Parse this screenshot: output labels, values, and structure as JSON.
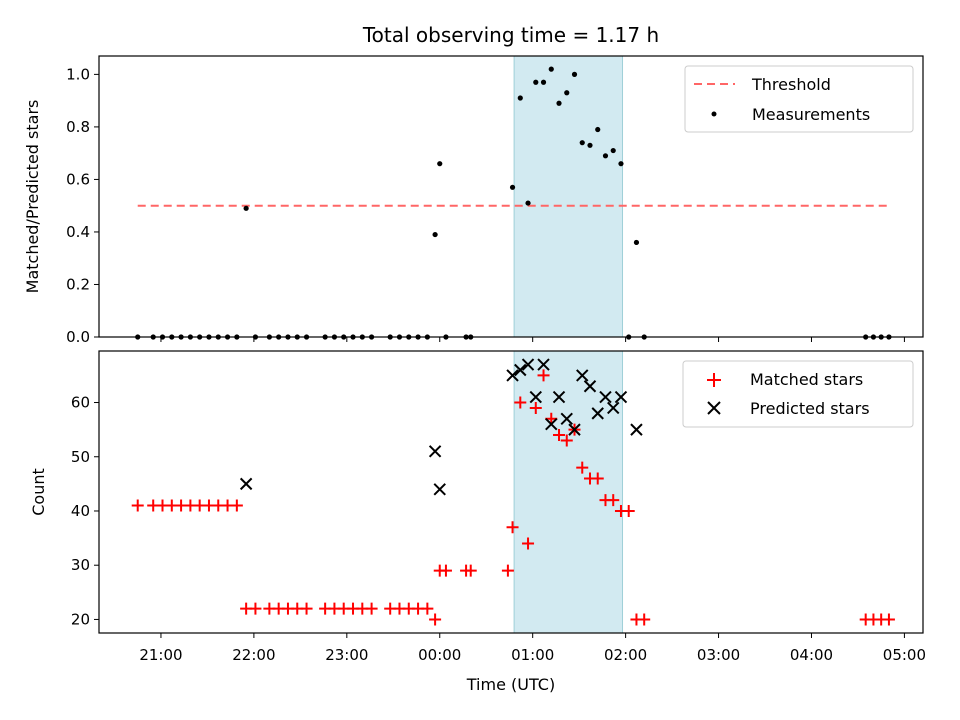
{
  "chart_data": [
    {
      "type": "scatter",
      "title": "Total observing time = 1.17 h",
      "xlabel": "",
      "ylabel": "Matched/Predicted stars",
      "ylim": [
        0,
        1.07
      ],
      "yticks": [
        "0.0",
        "0.2",
        "0.4",
        "0.6",
        "0.8",
        "1.0"
      ],
      "highlight_window": [
        "00:48",
        "01:58"
      ],
      "highlight_color": "#add8e6",
      "threshold": {
        "name": "Threshold",
        "value": 0.5,
        "x_range": [
          "20:45",
          "04:50"
        ],
        "color": "#ff6666"
      },
      "series": [
        {
          "name": "Measurements",
          "color": "#000000",
          "points": [
            [
              "20:45",
              0
            ],
            [
              "20:55",
              0
            ],
            [
              "21:01",
              0
            ],
            [
              "21:07",
              0
            ],
            [
              "21:13",
              0
            ],
            [
              "21:19",
              0
            ],
            [
              "21:25",
              0
            ],
            [
              "21:31",
              0
            ],
            [
              "21:37",
              0
            ],
            [
              "21:43",
              0
            ],
            [
              "21:49",
              0
            ],
            [
              "21:55",
              0.49
            ],
            [
              "22:01",
              0
            ],
            [
              "22:10",
              0
            ],
            [
              "22:16",
              0
            ],
            [
              "22:22",
              0
            ],
            [
              "22:28",
              0
            ],
            [
              "22:34",
              0
            ],
            [
              "22:46",
              0
            ],
            [
              "22:52",
              0
            ],
            [
              "22:58",
              0
            ],
            [
              "23:04",
              0
            ],
            [
              "23:10",
              0
            ],
            [
              "23:16",
              0
            ],
            [
              "23:28",
              0
            ],
            [
              "23:34",
              0
            ],
            [
              "23:40",
              0
            ],
            [
              "23:46",
              0
            ],
            [
              "23:52",
              0
            ],
            [
              "23:57",
              0.39
            ],
            [
              "00:00",
              0.66
            ],
            [
              "00:04",
              0
            ],
            [
              "00:17",
              0
            ],
            [
              "00:20",
              0
            ],
            [
              "00:47",
              0.57
            ],
            [
              "00:52",
              0.91
            ],
            [
              "00:57",
              0.51
            ],
            [
              "01:02",
              0.97
            ],
            [
              "01:07",
              0.97
            ],
            [
              "01:12",
              1.02
            ],
            [
              "01:17",
              0.89
            ],
            [
              "01:22",
              0.93
            ],
            [
              "01:27",
              1.0
            ],
            [
              "01:32",
              0.74
            ],
            [
              "01:37",
              0.73
            ],
            [
              "01:42",
              0.79
            ],
            [
              "01:47",
              0.69
            ],
            [
              "01:52",
              0.71
            ],
            [
              "01:57",
              0.66
            ],
            [
              "02:02",
              0
            ],
            [
              "02:07",
              0.36
            ],
            [
              "02:12",
              0
            ],
            [
              "04:35",
              0
            ],
            [
              "04:40",
              0
            ],
            [
              "04:45",
              0
            ],
            [
              "04:50",
              0
            ]
          ]
        }
      ],
      "legend": {
        "position": "upper-right",
        "entries": [
          "Threshold",
          "Measurements"
        ]
      },
      "grid": false
    },
    {
      "type": "scatter",
      "title": "",
      "xlabel": "Time (UTC)",
      "ylabel": "Count",
      "ylim": [
        17.5,
        69.5
      ],
      "yticks": [
        "20",
        "30",
        "40",
        "50",
        "60"
      ],
      "xticks": [
        "21:00",
        "22:00",
        "23:00",
        "00:00",
        "01:00",
        "02:00",
        "03:00",
        "04:00",
        "05:00"
      ],
      "x_start": "20:20",
      "x_end": "05:12",
      "highlight_window": [
        "00:48",
        "01:58"
      ],
      "series": [
        {
          "name": "Matched stars",
          "marker": "plus",
          "color": "#ff0000",
          "points": [
            [
              "20:45",
              41
            ],
            [
              "20:55",
              41
            ],
            [
              "21:01",
              41
            ],
            [
              "21:07",
              41
            ],
            [
              "21:13",
              41
            ],
            [
              "21:19",
              41
            ],
            [
              "21:25",
              41
            ],
            [
              "21:31",
              41
            ],
            [
              "21:37",
              41
            ],
            [
              "21:43",
              41
            ],
            [
              "21:49",
              41
            ],
            [
              "21:55",
              22
            ],
            [
              "22:01",
              22
            ],
            [
              "22:10",
              22
            ],
            [
              "22:16",
              22
            ],
            [
              "22:22",
              22
            ],
            [
              "22:28",
              22
            ],
            [
              "22:34",
              22
            ],
            [
              "22:46",
              22
            ],
            [
              "22:52",
              22
            ],
            [
              "22:58",
              22
            ],
            [
              "23:04",
              22
            ],
            [
              "23:10",
              22
            ],
            [
              "23:16",
              22
            ],
            [
              "23:28",
              22
            ],
            [
              "23:34",
              22
            ],
            [
              "23:40",
              22
            ],
            [
              "23:46",
              22
            ],
            [
              "23:52",
              22
            ],
            [
              "23:57",
              20
            ],
            [
              "00:00",
              29
            ],
            [
              "00:04",
              29
            ],
            [
              "00:17",
              29
            ],
            [
              "00:20",
              29
            ],
            [
              "00:44",
              29
            ],
            [
              "00:47",
              37
            ],
            [
              "00:52",
              60
            ],
            [
              "00:57",
              34
            ],
            [
              "01:02",
              59
            ],
            [
              "01:07",
              65
            ],
            [
              "01:12",
              57
            ],
            [
              "01:17",
              54
            ],
            [
              "01:22",
              53
            ],
            [
              "01:27",
              55
            ],
            [
              "01:32",
              48
            ],
            [
              "01:37",
              46
            ],
            [
              "01:42",
              46
            ],
            [
              "01:47",
              42
            ],
            [
              "01:52",
              42
            ],
            [
              "01:57",
              40
            ],
            [
              "02:02",
              40
            ],
            [
              "02:07",
              20
            ],
            [
              "02:12",
              20
            ],
            [
              "04:35",
              20
            ],
            [
              "04:40",
              20
            ],
            [
              "04:45",
              20
            ],
            [
              "04:50",
              20
            ]
          ]
        },
        {
          "name": "Predicted stars",
          "marker": "x",
          "color": "#000000",
          "points": [
            [
              "21:55",
              45
            ],
            [
              "23:57",
              51
            ],
            [
              "00:00",
              44
            ],
            [
              "00:47",
              65
            ],
            [
              "00:52",
              66
            ],
            [
              "00:57",
              67
            ],
            [
              "01:02",
              61
            ],
            [
              "01:07",
              67
            ],
            [
              "01:12",
              56
            ],
            [
              "01:17",
              61
            ],
            [
              "01:22",
              57
            ],
            [
              "01:27",
              55
            ],
            [
              "01:32",
              65
            ],
            [
              "01:37",
              63
            ],
            [
              "01:42",
              58
            ],
            [
              "01:47",
              61
            ],
            [
              "01:52",
              59
            ],
            [
              "01:57",
              61
            ],
            [
              "02:07",
              55
            ]
          ]
        }
      ],
      "legend": {
        "position": "upper-right",
        "entries": [
          "Matched stars",
          "Predicted stars"
        ]
      },
      "grid": false
    }
  ]
}
